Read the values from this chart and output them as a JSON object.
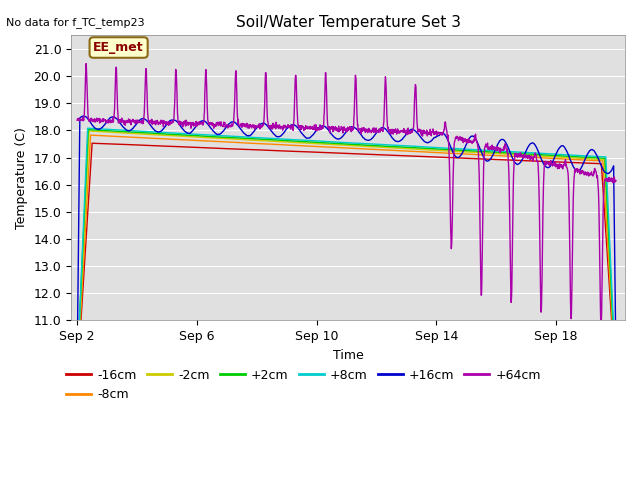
{
  "title": "Soil/Water Temperature Set 3",
  "no_data_text": "No data for f_TC_temp23",
  "xlabel": "Time",
  "ylabel": "Temperature (C)",
  "ylim": [
    11.0,
    21.5
  ],
  "yticks": [
    11.0,
    12.0,
    13.0,
    14.0,
    15.0,
    16.0,
    17.0,
    18.0,
    19.0,
    20.0,
    21.0
  ],
  "xtick_labels": [
    "Sep 2",
    "Sep 6",
    "Sep 10",
    "Sep 14",
    "Sep 18"
  ],
  "xtick_positions": [
    0,
    4,
    8,
    12,
    16
  ],
  "bg_color": "#e0e0e0",
  "annotation_label": "EE_met",
  "series_colors": {
    "-16cm": "#cc0000",
    "-8cm": "#ff8800",
    "-2cm": "#cccc00",
    "+2cm": "#00cc00",
    "+8cm": "#00cccc",
    "+16cm": "#0000cc",
    "+64cm": "#aa00aa"
  },
  "legend_order": [
    "-16cm",
    "-8cm",
    "-2cm",
    "+2cm",
    "+8cm",
    "+16cm",
    "+64cm"
  ]
}
